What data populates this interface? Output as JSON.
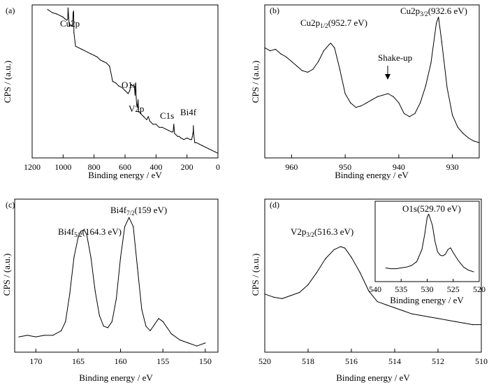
{
  "chart_data": [
    {
      "type": "line",
      "panel": "(a)",
      "xlabel": "Binding energy / eV",
      "ylabel": "CPS / (a.u.)",
      "xlim": [
        1200,
        0
      ],
      "ylim": [
        0,
        100
      ],
      "xticks": [
        1200,
        1000,
        800,
        600,
        400,
        200,
        0
      ],
      "annotations": [
        {
          "text": "Cu2p",
          "x": 932,
          "y": 90
        },
        {
          "text": "O1s",
          "x": 531,
          "y": 60
        },
        {
          "text": "V2p",
          "x": 516,
          "y": 38
        },
        {
          "text": "C1s",
          "x": 285,
          "y": 31
        },
        {
          "text": "Bi4f",
          "x": 159,
          "y": 34
        }
      ],
      "series": [
        {
          "x": [
            1100,
            1070,
            1040,
            1000,
            990,
            975,
            970,
            968,
            960,
            950,
            940,
            935,
            932,
            930,
            920,
            900,
            880,
            860,
            840,
            820,
            800,
            780,
            760,
            740,
            720,
            700,
            680,
            660,
            640,
            620,
            600,
            580,
            570,
            560,
            550,
            540,
            535,
            531,
            528,
            525,
            520,
            516,
            512,
            505,
            500,
            480,
            460,
            450,
            440,
            420,
            400,
            380,
            360,
            340,
            320,
            300,
            290,
            285,
            280,
            270,
            260,
            250,
            240,
            220,
            200,
            180,
            170,
            165,
            162,
            160,
            159,
            157,
            150,
            140,
            120,
            100,
            80,
            60,
            40,
            20,
            0
          ],
          "y": [
            97,
            95,
            94,
            92,
            91,
            90,
            91,
            98,
            86,
            87,
            86,
            95,
            96,
            82,
            73,
            72,
            71,
            70,
            69,
            68,
            67,
            66,
            64,
            63,
            62,
            60,
            50,
            49,
            47,
            46,
            44,
            42,
            44,
            48,
            47,
            47,
            41,
            49,
            39,
            35,
            33,
            38,
            30,
            30,
            29,
            27,
            25,
            27,
            24,
            22,
            22,
            20,
            20,
            19,
            18,
            17,
            17,
            22,
            16,
            15,
            14,
            14,
            13,
            12,
            13,
            12,
            12,
            14,
            16,
            17,
            21,
            16,
            10,
            10,
            9,
            8,
            7,
            6,
            5,
            4,
            3
          ]
        }
      ]
    },
    {
      "type": "line",
      "panel": "(b)",
      "xlabel": "Binding energy / eV",
      "ylabel": "CPS / (a.u.)",
      "xlim": [
        965,
        925
      ],
      "ylim": [
        0,
        100
      ],
      "xticks": [
        960,
        950,
        940,
        930
      ],
      "annotations": [
        {
          "text": "Cu2p",
          "sub": "1/2",
          "value": "(952.7 eV)",
          "x": 952.7
        },
        {
          "text": "Cu2p",
          "sub": "3/2",
          "value": "(932.6 eV)",
          "x": 932.6
        },
        {
          "text": "Shake-up",
          "x": 942
        }
      ],
      "series": [
        {
          "x": [
            965,
            964,
            963,
            962,
            961,
            960,
            959,
            958,
            957,
            956,
            955,
            954,
            953,
            952.7,
            952,
            951,
            950,
            949,
            948,
            947,
            946,
            945,
            944,
            943,
            942,
            941,
            940,
            939,
            938,
            937,
            936,
            935,
            934,
            933,
            932.6,
            932,
            931,
            930,
            929,
            928,
            927,
            926,
            925
          ],
          "y": [
            72,
            70,
            71,
            68,
            66,
            63,
            60,
            57,
            56,
            58,
            63,
            70,
            74,
            75,
            72,
            58,
            42,
            36,
            33,
            34,
            36,
            38,
            40,
            41,
            42,
            40,
            36,
            29,
            27,
            29,
            36,
            47,
            62,
            88,
            92,
            76,
            46,
            28,
            20,
            16,
            13,
            11,
            10
          ]
        }
      ]
    },
    {
      "type": "line",
      "panel": "(c)",
      "xlabel": "Binding energy / eV",
      "ylabel": "CPS / (a.u.)",
      "xlim": [
        172.5,
        148.5
      ],
      "ylim": [
        0,
        100
      ],
      "xticks": [
        170,
        165,
        160,
        155,
        150
      ],
      "annotations": [
        {
          "text": "Bi4f",
          "sub": "5/2",
          "value": "(164.3 eV)",
          "x": 164.3
        },
        {
          "text": "Bi4f",
          "sub": "7/2",
          "value": "(159 eV)",
          "x": 159
        }
      ],
      "series": [
        {
          "x": [
            172,
            171,
            170,
            169,
            168,
            167,
            166.5,
            166,
            165.5,
            165,
            164.7,
            164.3,
            164,
            163.5,
            163,
            162.5,
            162,
            161.5,
            161,
            160.5,
            160,
            159.5,
            159,
            158.5,
            158,
            157.5,
            157,
            156.5,
            156,
            155.5,
            155,
            154.5,
            154,
            153,
            152,
            151,
            150
          ],
          "y": [
            10,
            11,
            10,
            11,
            11,
            14,
            20,
            38,
            62,
            75,
            79,
            80,
            77,
            62,
            40,
            24,
            17,
            16,
            20,
            35,
            62,
            82,
            88,
            82,
            55,
            28,
            17,
            14,
            18,
            22,
            20,
            16,
            12,
            8,
            6,
            4,
            6
          ]
        }
      ]
    },
    {
      "type": "line",
      "panel": "(d)",
      "xlabel": "Binding energy / eV",
      "ylabel": "CPS / (a.u.)",
      "xlim": [
        520,
        510
      ],
      "ylim": [
        0,
        100
      ],
      "xticks": [
        520,
        518,
        516,
        514,
        512,
        510
      ],
      "annotations": [
        {
          "text": "V2p",
          "sub": "3/2",
          "value": "(516.3 eV)",
          "x": 516.3
        }
      ],
      "series": [
        {
          "x": [
            520,
            519.6,
            519.2,
            518.8,
            518.4,
            518,
            517.6,
            517.2,
            516.8,
            516.5,
            516.3,
            516,
            515.6,
            515.2,
            514.8,
            514.4,
            514,
            513.6,
            513.2,
            512.8,
            512.4,
            512,
            511.6,
            511.2,
            510.8,
            510.4,
            510
          ],
          "y": [
            38,
            36,
            35,
            37,
            39,
            44,
            52,
            61,
            67,
            69,
            68,
            62,
            52,
            40,
            33,
            31,
            29,
            27,
            25,
            24,
            23,
            22,
            21,
            20,
            19,
            18,
            18
          ]
        }
      ],
      "inset": {
        "type": "line",
        "xlabel": "Binding energy / eV",
        "xlim": [
          540,
          520
        ],
        "ylim": [
          0,
          100
        ],
        "xticks": [
          540,
          535,
          530,
          525,
          520
        ],
        "annotations": [
          {
            "text": "O1s",
            "value": "(529.70 eV)",
            "x": 529.7
          }
        ],
        "series": [
          {
            "x": [
              538,
              537,
              536,
              535,
              534,
              533,
              532,
              531,
              530.5,
              530,
              529.7,
              529,
              528.5,
              528,
              527.5,
              527,
              526.5,
              526,
              525.5,
              525,
              524,
              523,
              522,
              521
            ],
            "y": [
              17,
              16,
              16,
              17,
              18,
              20,
              25,
              40,
              58,
              80,
              84,
              70,
              50,
              37,
              33,
              32,
              34,
              40,
              42,
              36,
              26,
              18,
              14,
              12
            ]
          }
        ]
      }
    }
  ]
}
